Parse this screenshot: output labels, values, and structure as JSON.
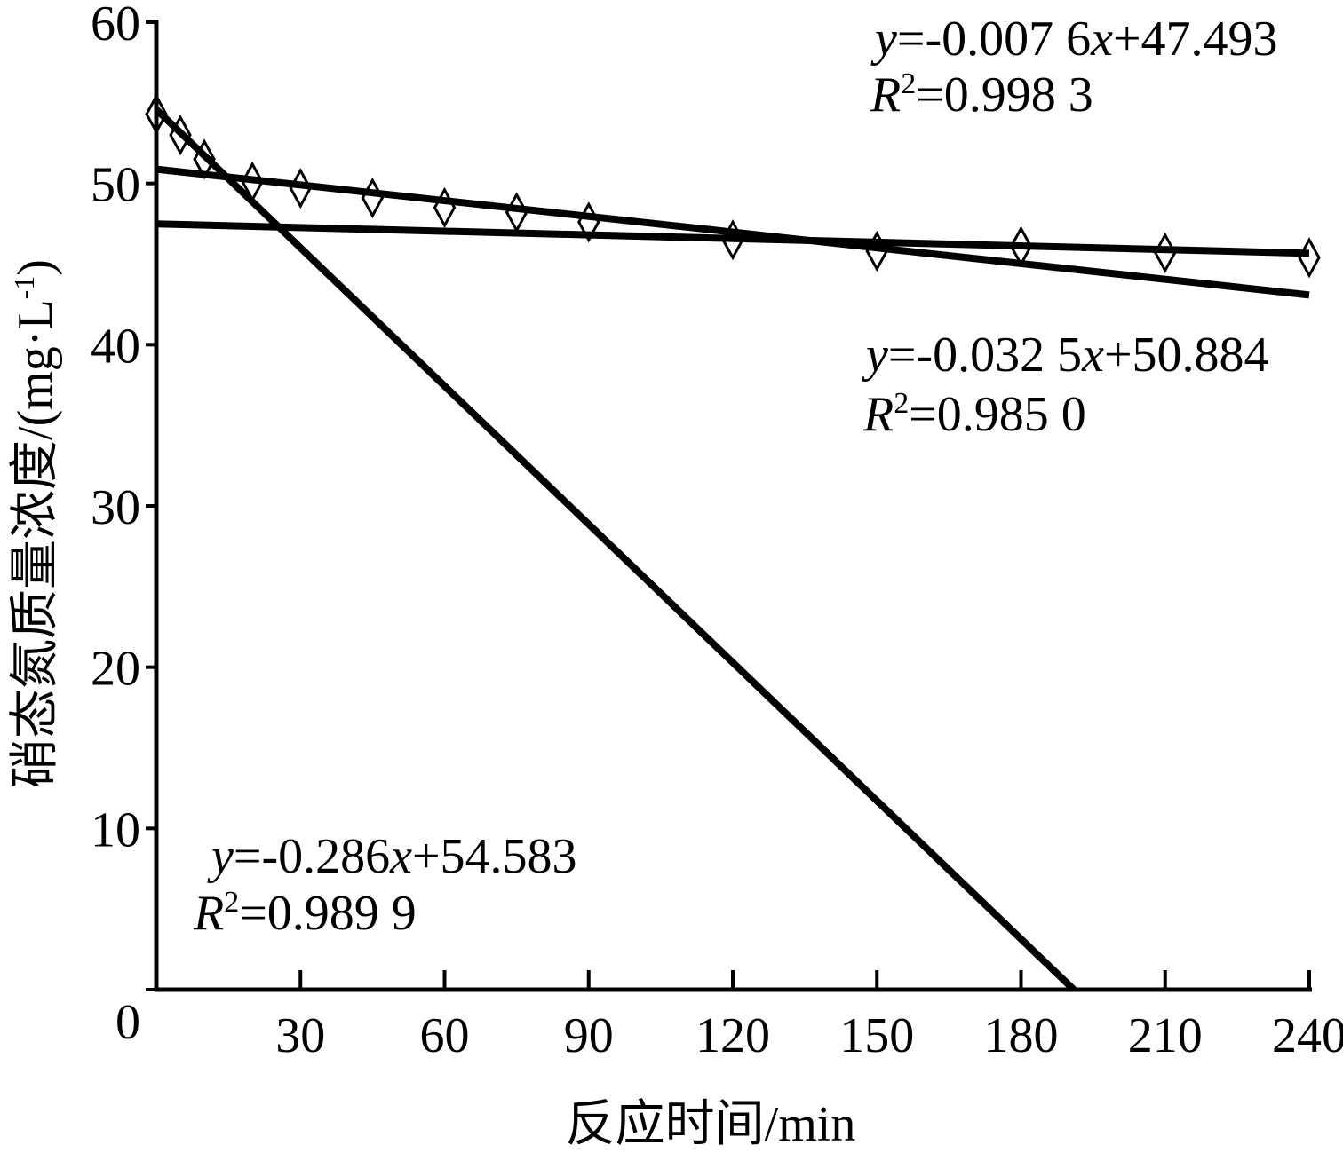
{
  "chart_data": {
    "type": "scatter",
    "x_label": "反应时间/min",
    "y_label_parts": [
      "硝态氮质量浓度/(mg·L",
      "-1",
      ")"
    ],
    "xlim": [
      0,
      240
    ],
    "xticks": [
      30,
      60,
      90,
      120,
      150,
      180,
      210,
      240
    ],
    "ylim": [
      0,
      60
    ],
    "yticks": [
      0,
      10,
      20,
      30,
      40,
      50,
      60
    ],
    "points": {
      "color": "#000000",
      "x": [
        0,
        5,
        10,
        20,
        30,
        45,
        60,
        75,
        90,
        120,
        150,
        180,
        210,
        240
      ],
      "values": [
        54.3,
        53.0,
        51.5,
        50.1,
        49.7,
        49.1,
        48.5,
        48.2,
        47.6,
        46.5,
        45.8,
        46.1,
        45.7,
        45.4
      ]
    },
    "series": [
      {
        "color": "#000000",
        "x": [
          0,
          191
        ],
        "values": [
          54.583,
          0
        ]
      },
      {
        "color": "#000000",
        "x": [
          0,
          240
        ],
        "values": [
          50.884,
          43.08
        ]
      },
      {
        "color": "#000000",
        "x": [
          0,
          240
        ],
        "values": [
          47.493,
          45.67
        ]
      }
    ],
    "annotations": [
      {
        "equation_parts": [
          "y",
          "=-0.007 6",
          "x",
          "+47.493"
        ],
        "r2_parts": [
          "R",
          "2",
          "=0.998 3"
        ]
      },
      {
        "equation_parts": [
          "y",
          "=-0.032 5",
          "x",
          "+50.884"
        ],
        "r2_parts": [
          "R",
          "2",
          "=0.985 0"
        ]
      },
      {
        "equation_parts": [
          "y",
          "=-0.286",
          "x",
          "+54.583"
        ],
        "r2_parts": [
          "R",
          "2",
          "=0.989 9"
        ]
      }
    ]
  }
}
